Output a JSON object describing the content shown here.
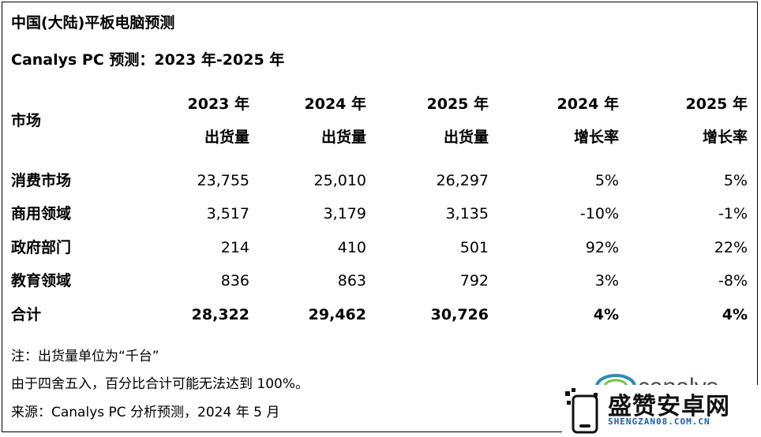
{
  "title": "中国(大陆)平板电脑预测",
  "subtitle": "Canalys PC 预测：2023 年-2025 年",
  "table": {
    "market_header": "市场",
    "columns": [
      {
        "line1": "2023 年",
        "line2": "出货量"
      },
      {
        "line1": "2024 年",
        "line2": "出货量"
      },
      {
        "line1": "2025 年",
        "line2": "出货量"
      },
      {
        "line1": "2024 年",
        "line2": "增长率"
      },
      {
        "line1": "2025 年",
        "line2": "增长率"
      }
    ],
    "rows": [
      {
        "label": "消费市场",
        "values": [
          "23,755",
          "25,010",
          "26,297",
          "5%",
          "5%"
        ]
      },
      {
        "label": "商用领域",
        "values": [
          "3,517",
          "3,179",
          "3,135",
          "-10%",
          "-1%"
        ]
      },
      {
        "label": "政府部门",
        "values": [
          "214",
          "410",
          "501",
          "92%",
          "22%"
        ]
      },
      {
        "label": "教育领域",
        "values": [
          "836",
          "863",
          "792",
          "3%",
          "-8%"
        ]
      }
    ],
    "total": {
      "label": "合计",
      "values": [
        "28,322",
        "29,462",
        "30,726",
        "4%",
        "4%"
      ]
    }
  },
  "notes": [
    "注：出货量单位为“千台”",
    "由于四舍五入，百分比合计可能无法达到 100%。",
    "来源：Canalys PC 分析预测，2024 年 5 月"
  ],
  "logo": {
    "text": "canalys",
    "color": "#3a4a5a"
  },
  "watermark": {
    "text": "盛赞安卓网",
    "url": "SHENGZAN08.COM.CN",
    "color": "#1a5fb4"
  }
}
